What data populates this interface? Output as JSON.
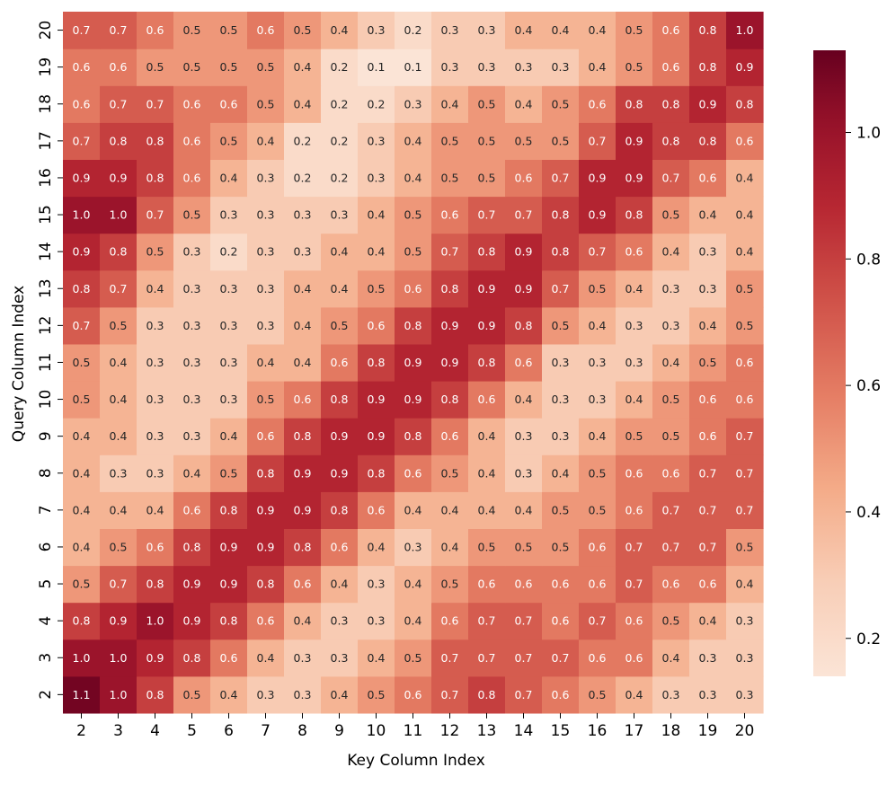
{
  "chart_data": {
    "type": "heatmap",
    "title": "",
    "xlabel": "Key Column Index",
    "ylabel": "Query Column Index",
    "x_categories": [
      "2",
      "3",
      "4",
      "5",
      "6",
      "7",
      "8",
      "9",
      "10",
      "11",
      "12",
      "13",
      "14",
      "15",
      "16",
      "17",
      "18",
      "19",
      "20"
    ],
    "y_categories": [
      "2",
      "3",
      "4",
      "5",
      "6",
      "7",
      "8",
      "9",
      "10",
      "11",
      "12",
      "13",
      "14",
      "15",
      "16",
      "17",
      "18",
      "19",
      "20"
    ],
    "y_order": "bottom-to-top",
    "colormap": "RdBu_r (upper half: light peach to dark red)",
    "color_low": "#fbe3d6",
    "color_high": "#6b0a22",
    "vmin": 0.14,
    "vmax": 1.13,
    "colorbar_ticks": [
      "0.2",
      "0.4",
      "0.6",
      "0.8",
      "1.0"
    ],
    "colorbar_tick_values": [
      0.2,
      0.4,
      0.6,
      0.8,
      1.0
    ],
    "annotation_format": "1 decimal",
    "values": [
      [
        1.1,
        1.0,
        0.8,
        0.5,
        0.4,
        0.3,
        0.3,
        0.4,
        0.5,
        0.6,
        0.7,
        0.8,
        0.7,
        0.6,
        0.5,
        0.4,
        0.3,
        0.3,
        0.3
      ],
      [
        1.0,
        1.0,
        0.9,
        0.8,
        0.6,
        0.4,
        0.3,
        0.3,
        0.4,
        0.5,
        0.7,
        0.7,
        0.7,
        0.7,
        0.6,
        0.6,
        0.4,
        0.3,
        0.3
      ],
      [
        0.8,
        0.9,
        1.0,
        0.9,
        0.8,
        0.6,
        0.4,
        0.3,
        0.3,
        0.4,
        0.6,
        0.7,
        0.7,
        0.6,
        0.7,
        0.6,
        0.5,
        0.4,
        0.3
      ],
      [
        0.5,
        0.7,
        0.8,
        0.9,
        0.9,
        0.8,
        0.6,
        0.4,
        0.3,
        0.4,
        0.5,
        0.6,
        0.6,
        0.6,
        0.6,
        0.7,
        0.6,
        0.6,
        0.4
      ],
      [
        0.4,
        0.5,
        0.6,
        0.8,
        0.9,
        0.9,
        0.8,
        0.6,
        0.4,
        0.3,
        0.4,
        0.5,
        0.5,
        0.5,
        0.6,
        0.7,
        0.7,
        0.7,
        0.5
      ],
      [
        0.4,
        0.4,
        0.4,
        0.6,
        0.8,
        0.9,
        0.9,
        0.8,
        0.6,
        0.4,
        0.4,
        0.4,
        0.4,
        0.5,
        0.5,
        0.6,
        0.7,
        0.7,
        0.7
      ],
      [
        0.4,
        0.3,
        0.3,
        0.4,
        0.5,
        0.8,
        0.9,
        0.9,
        0.8,
        0.6,
        0.5,
        0.4,
        0.3,
        0.4,
        0.5,
        0.6,
        0.6,
        0.7,
        0.7
      ],
      [
        0.4,
        0.4,
        0.3,
        0.3,
        0.4,
        0.6,
        0.8,
        0.9,
        0.9,
        0.8,
        0.6,
        0.4,
        0.3,
        0.3,
        0.4,
        0.5,
        0.5,
        0.6,
        0.7
      ],
      [
        0.5,
        0.4,
        0.3,
        0.3,
        0.3,
        0.5,
        0.6,
        0.8,
        0.9,
        0.9,
        0.8,
        0.6,
        0.4,
        0.3,
        0.3,
        0.4,
        0.5,
        0.6,
        0.6
      ],
      [
        0.5,
        0.4,
        0.3,
        0.3,
        0.3,
        0.4,
        0.4,
        0.6,
        0.8,
        0.9,
        0.9,
        0.8,
        0.6,
        0.3,
        0.3,
        0.3,
        0.4,
        0.5,
        0.6
      ],
      [
        0.7,
        0.5,
        0.3,
        0.3,
        0.3,
        0.3,
        0.4,
        0.5,
        0.6,
        0.8,
        0.9,
        0.9,
        0.8,
        0.5,
        0.4,
        0.3,
        0.3,
        0.4,
        0.5
      ],
      [
        0.8,
        0.7,
        0.4,
        0.3,
        0.3,
        0.3,
        0.4,
        0.4,
        0.5,
        0.6,
        0.8,
        0.9,
        0.9,
        0.7,
        0.5,
        0.4,
        0.3,
        0.3,
        0.5
      ],
      [
        0.9,
        0.8,
        0.5,
        0.3,
        0.2,
        0.3,
        0.3,
        0.4,
        0.4,
        0.5,
        0.7,
        0.8,
        0.9,
        0.8,
        0.7,
        0.6,
        0.4,
        0.3,
        0.4
      ],
      [
        1.0,
        1.0,
        0.7,
        0.5,
        0.3,
        0.3,
        0.3,
        0.3,
        0.4,
        0.5,
        0.6,
        0.7,
        0.7,
        0.8,
        0.9,
        0.8,
        0.5,
        0.4,
        0.4
      ],
      [
        0.9,
        0.9,
        0.8,
        0.6,
        0.4,
        0.3,
        0.2,
        0.2,
        0.3,
        0.4,
        0.5,
        0.5,
        0.6,
        0.7,
        0.9,
        0.9,
        0.7,
        0.6,
        0.4
      ],
      [
        0.7,
        0.8,
        0.8,
        0.6,
        0.5,
        0.4,
        0.2,
        0.2,
        0.3,
        0.4,
        0.5,
        0.5,
        0.5,
        0.5,
        0.7,
        0.9,
        0.8,
        0.8,
        0.6
      ],
      [
        0.6,
        0.7,
        0.7,
        0.6,
        0.6,
        0.5,
        0.4,
        0.2,
        0.2,
        0.3,
        0.4,
        0.5,
        0.4,
        0.5,
        0.6,
        0.8,
        0.8,
        0.9,
        0.8
      ],
      [
        0.6,
        0.6,
        0.5,
        0.5,
        0.5,
        0.5,
        0.4,
        0.2,
        0.1,
        0.1,
        0.3,
        0.3,
        0.3,
        0.3,
        0.4,
        0.5,
        0.6,
        0.8,
        0.9
      ],
      [
        0.7,
        0.7,
        0.6,
        0.5,
        0.5,
        0.6,
        0.5,
        0.4,
        0.3,
        0.2,
        0.3,
        0.3,
        0.4,
        0.4,
        0.4,
        0.5,
        0.6,
        0.8,
        1.0
      ]
    ]
  }
}
